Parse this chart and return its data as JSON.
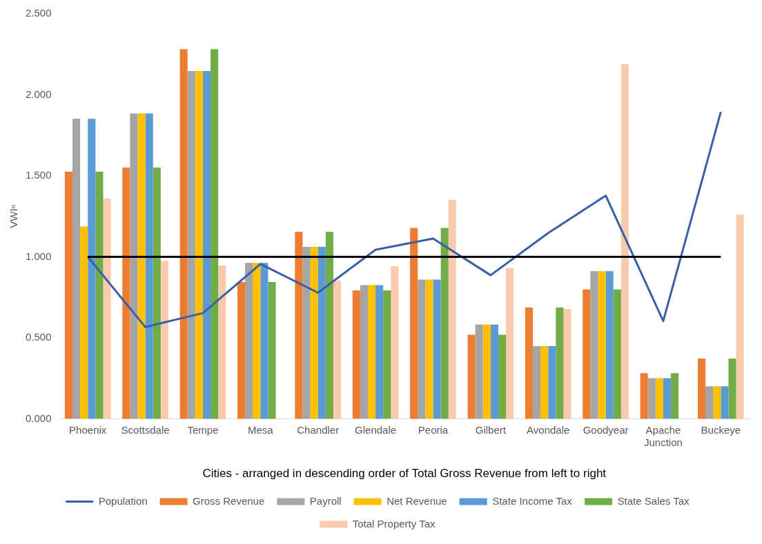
{
  "chart_data": {
    "type": "bar",
    "xlabel": "Cities - arranged in descending order of Total Gross Revenue from left to right",
    "ylabel": "VWIⁿ",
    "categories": [
      "Phoenix",
      "Scottsdale",
      "Tempe",
      "Mesa",
      "Chandler",
      "Glendale",
      "Peoria",
      "Gilbert",
      "Avondale",
      "Goodyear",
      "Apache Junction",
      "Buckeye"
    ],
    "series": [
      {
        "name": "Gross Revenue",
        "color": "#ed7d31",
        "values": [
          1.526,
          1.551,
          2.282,
          0.845,
          1.155,
          0.793,
          1.179,
          0.519,
          0.688,
          0.799,
          0.282,
          0.373
        ]
      },
      {
        "name": "Payroll",
        "color": "#a5a5a5",
        "values": [
          1.852,
          1.885,
          2.147,
          0.963,
          1.062,
          0.826,
          0.86,
          0.582,
          0.449,
          0.912,
          0.251,
          0.201
        ]
      },
      {
        "name": "Net Revenue",
        "color": "#ffc000",
        "values": [
          1.187,
          1.885,
          2.147,
          0.963,
          1.062,
          0.826,
          0.86,
          0.582,
          0.449,
          0.912,
          0.251,
          0.201
        ]
      },
      {
        "name": "State Income Tax",
        "color": "#5b9bd5",
        "values": [
          1.852,
          1.885,
          2.147,
          0.963,
          1.062,
          0.826,
          0.86,
          0.582,
          0.449,
          0.912,
          0.251,
          0.201
        ]
      },
      {
        "name": "State Sales Tax",
        "color": "#70ad47",
        "values": [
          1.526,
          1.551,
          2.282,
          0.845,
          1.155,
          0.793,
          1.179,
          0.519,
          0.688,
          0.799,
          0.282,
          0.373
        ]
      },
      {
        "name": "Total Property Tax",
        "color": "#f8cbad",
        "values": [
          1.361,
          0.976,
          0.946,
          null,
          0.853,
          0.943,
          1.351,
          0.931,
          0.678,
          2.189,
          null,
          1.261
        ]
      },
      {
        "name": "Population",
        "type": "line",
        "color": "#3a5ea8",
        "values": [
          1.0,
          0.567,
          0.653,
          0.956,
          0.779,
          1.044,
          1.113,
          0.887,
          1.147,
          1.378,
          0.604,
          1.894
        ]
      }
    ],
    "ref_lines": [
      {
        "axis": "y",
        "value": 1,
        "color": "#000000"
      }
    ],
    "ylim": [
      0,
      2.5
    ],
    "yticks": [
      {
        "value": 0,
        "label": "0.000"
      },
      {
        "value": 0.5,
        "label": "0.500"
      },
      {
        "value": 1,
        "label": "1.000"
      },
      {
        "value": 1.5,
        "label": "1.500"
      },
      {
        "value": 2,
        "label": "2.000"
      },
      {
        "value": 2.5,
        "label": "2.500"
      }
    ],
    "grid": false,
    "legend": "bottom",
    "marker": "none"
  }
}
